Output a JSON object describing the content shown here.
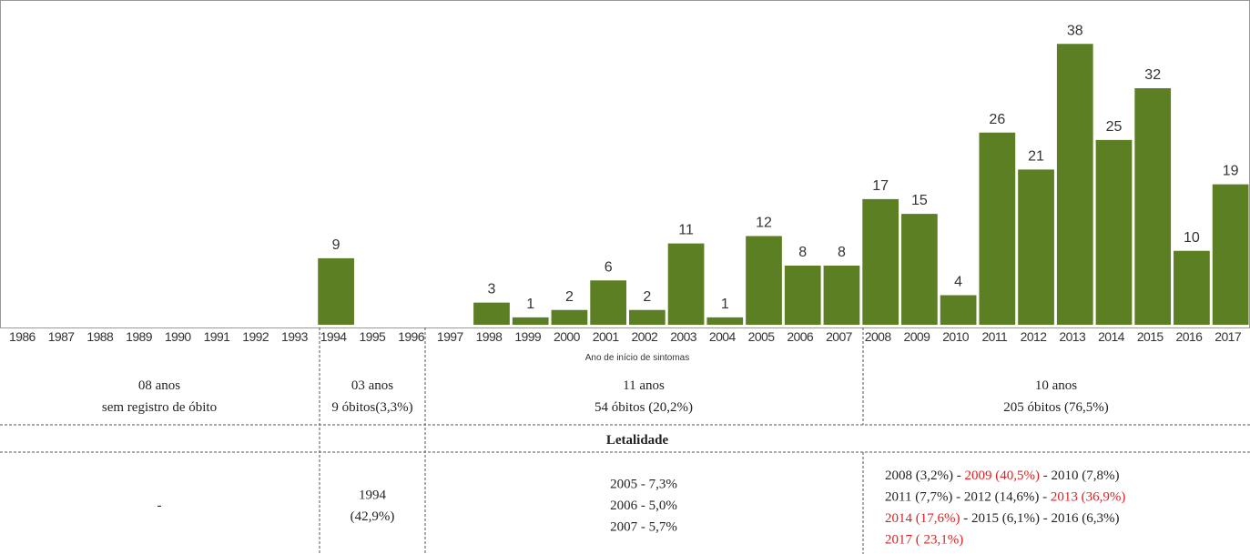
{
  "chart_data": {
    "type": "bar",
    "x_label": "Ano de início de sintomas",
    "categories": [
      "1986",
      "1987",
      "1988",
      "1989",
      "1990",
      "1991",
      "1992",
      "1993",
      "1994",
      "1995",
      "1996",
      "1997",
      "1998",
      "1999",
      "2000",
      "2001",
      "2002",
      "2003",
      "2004",
      "2005",
      "2006",
      "2007",
      "2008",
      "2009",
      "2010",
      "2011",
      "2012",
      "2013",
      "2014",
      "2015",
      "2016",
      "2017"
    ],
    "values": [
      null,
      null,
      null,
      null,
      null,
      null,
      null,
      null,
      9,
      null,
      null,
      null,
      3,
      1,
      2,
      6,
      2,
      11,
      1,
      12,
      8,
      8,
      17,
      15,
      4,
      26,
      21,
      38,
      25,
      32,
      10,
      19
    ],
    "color": "#5b7f22",
    "ylim": [
      0,
      40
    ]
  },
  "table": {
    "periods": [
      {
        "duration": "08 anos",
        "deaths": "sem registro de óbito"
      },
      {
        "duration": "03 anos",
        "deaths": "9 óbitos(3,3%)"
      },
      {
        "duration": "11 anos",
        "deaths": "54 óbitos (20,2%)"
      },
      {
        "duration": "10 anos",
        "deaths": "205 óbitos (76,5%)"
      }
    ],
    "header": "Letalidade",
    "lethality": [
      [
        [
          {
            "text": "-"
          }
        ]
      ],
      [
        [
          {
            "text": "1994"
          }
        ],
        [
          {
            "text": "(42,9%)"
          }
        ]
      ],
      [
        [
          {
            "text": "2005 - 7,3%"
          }
        ],
        [
          {
            "text": "2006 - 5,0%"
          }
        ],
        [
          {
            "text": "2007 - 5,7%"
          }
        ]
      ],
      [
        [
          {
            "text": "2008 (3,2%) - "
          },
          {
            "text": "2009 (40,5%)",
            "color": "#e02020"
          },
          {
            "text": " - 2010 (7,8%)"
          }
        ],
        [
          {
            "text": "2011 (7,7%) - 2012 (14,6%) - "
          },
          {
            "text": "2013 (36,9%)",
            "color": "#e02020"
          }
        ],
        [
          {
            "text": "2014 (17,6%)",
            "color": "#e02020"
          },
          {
            "text": " - 2015 (6,1%) - 2016 (6,3%)"
          }
        ],
        [
          {
            "text": "2017 ( 23,1%)",
            "color": "#e02020"
          }
        ]
      ]
    ]
  }
}
